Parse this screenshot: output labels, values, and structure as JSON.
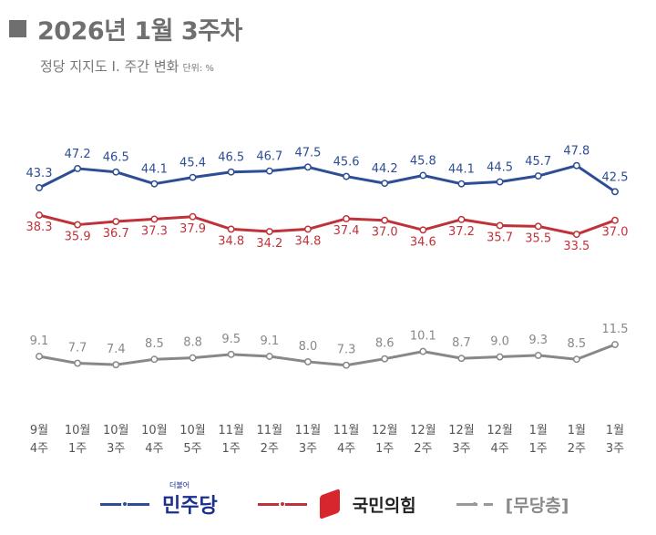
{
  "header": {
    "title": "2026년 1월 3주차",
    "subtitle": "정당 지지도 Ⅰ. 주간 변화",
    "unit": "단위: %"
  },
  "chart_data": {
    "type": "line",
    "categories": [
      [
        "9월",
        "4주"
      ],
      [
        "10월",
        "1주"
      ],
      [
        "10월",
        "3주"
      ],
      [
        "10월",
        "4주"
      ],
      [
        "10월",
        "5주"
      ],
      [
        "11월",
        "1주"
      ],
      [
        "11월",
        "2주"
      ],
      [
        "11월",
        "3주"
      ],
      [
        "11월",
        "4주"
      ],
      [
        "12월",
        "1주"
      ],
      [
        "12월",
        "2주"
      ],
      [
        "12월",
        "3주"
      ],
      [
        "12월",
        "4주"
      ],
      [
        "1월",
        "1주"
      ],
      [
        "1월",
        "2주"
      ],
      [
        "1월",
        "3주"
      ]
    ],
    "series": [
      {
        "name": "더불어민주당",
        "color": "#2d4d94",
        "values": [
          43.3,
          47.2,
          46.5,
          44.1,
          45.4,
          46.5,
          46.7,
          47.5,
          45.6,
          44.2,
          45.8,
          44.1,
          44.5,
          45.7,
          47.8,
          42.5
        ]
      },
      {
        "name": "국민의힘",
        "color": "#c0323a",
        "values": [
          38.3,
          35.9,
          36.7,
          37.3,
          37.9,
          34.8,
          34.2,
          34.8,
          37.4,
          37.0,
          34.6,
          37.2,
          35.7,
          35.5,
          33.5,
          37.0
        ]
      },
      {
        "name": "[무당층]",
        "color": "#888888",
        "values": [
          9.1,
          7.7,
          7.4,
          8.5,
          8.8,
          9.5,
          9.1,
          8.0,
          7.3,
          8.6,
          10.1,
          8.7,
          9.0,
          9.3,
          8.5,
          11.5
        ]
      }
    ],
    "grid": false,
    "legend": "bottom"
  },
  "legend": {
    "dem_logo_small": "더불어",
    "dem": "민주당",
    "ppp": "국민의힘",
    "ind": "[무당층]"
  }
}
